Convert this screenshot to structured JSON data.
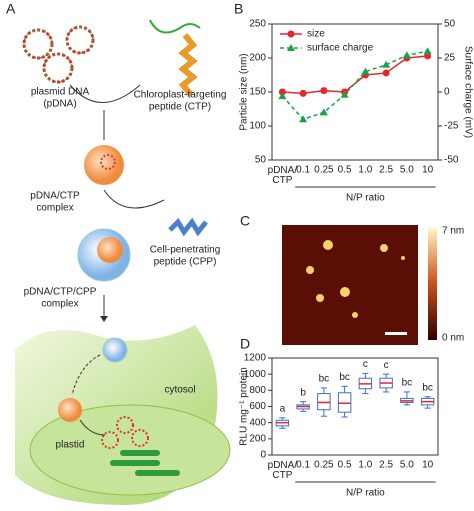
{
  "panels": [
    "A",
    "B",
    "C",
    "D"
  ],
  "diagram": {
    "plasmid_dna": [
      "plasmid DNA",
      "(pDNA)"
    ],
    "ctp": [
      "Chloroplast-targeting",
      "peptide (CTP)"
    ],
    "complex1": [
      "pDNA/CTP",
      "complex"
    ],
    "cpp": [
      "Cell-penetrating",
      "peptide (CPP)"
    ],
    "complex2": [
      "pDNA/CTP/CPP",
      "complex"
    ],
    "cytosol": "cytosol",
    "plastid": "plastid"
  },
  "afm": {
    "top_label": "7 nm",
    "bottom_label": "0 nm"
  },
  "chart_data": [
    {
      "type": "line",
      "categories": [
        "pDNA/\nCTP",
        "0.1",
        "0.25",
        "0.5",
        "1.0",
        "2.5",
        "5.0",
        "10"
      ],
      "xlabel": "N/P ratio",
      "ylabel": "Particle size (nm)",
      "y2label": "Surface charge (mV)",
      "ylim": [
        50,
        250
      ],
      "yticks": [
        50,
        100,
        150,
        200,
        250
      ],
      "y2lim": [
        -50,
        50
      ],
      "y2ticks": [
        -50,
        -25,
        0,
        25,
        50
      ],
      "legend": "top-left",
      "series": [
        {
          "name": "size",
          "color": "#e8262a",
          "marker": "circle",
          "values": [
            150,
            148,
            152,
            150,
            175,
            178,
            200,
            203
          ]
        },
        {
          "name": "surface charge",
          "color": "#1aa34a",
          "marker": "triangle",
          "dashed": true,
          "axis": "y2",
          "values": [
            -3,
            -20,
            -15,
            -2,
            15,
            20,
            27,
            30
          ]
        }
      ]
    },
    {
      "type": "box",
      "categories": [
        "pDNA/\nCTP",
        "0.1",
        "0.25",
        "0.5",
        "1.0",
        "2.5",
        "5.0",
        "10"
      ],
      "xlabel": "N/P ratio",
      "ylabel": "RLU mg⁻¹ protein",
      "ylim": [
        0,
        1200
      ],
      "yticks": [
        0,
        200,
        400,
        600,
        800,
        1000,
        1200
      ],
      "box_color": "#3b6fc9",
      "median_color": "#e8262a",
      "min": [
        330,
        540,
        480,
        470,
        760,
        780,
        620,
        580
      ],
      "q1": [
        360,
        570,
        560,
        530,
        820,
        830,
        650,
        620
      ],
      "median": [
        400,
        600,
        650,
        640,
        880,
        890,
        670,
        660
      ],
      "q3": [
        430,
        620,
        760,
        770,
        950,
        950,
        700,
        700
      ],
      "max": [
        460,
        660,
        830,
        850,
        1010,
        1000,
        780,
        720
      ],
      "letters": [
        "a",
        "b",
        "bc",
        "bc",
        "c",
        "c",
        "bc",
        "bc"
      ]
    }
  ]
}
